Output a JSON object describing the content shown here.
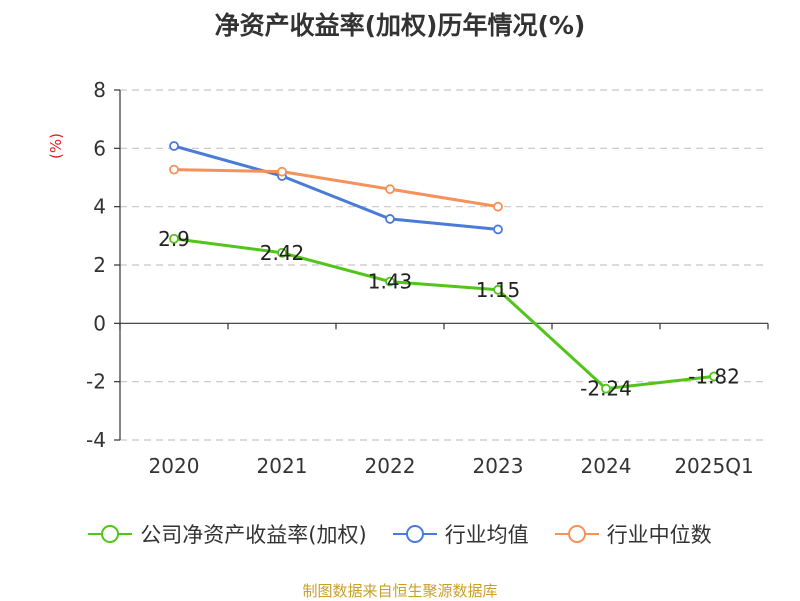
{
  "title": "净资产收益率(加权)历年情况(%)",
  "source": "制图数据来自恒生聚源数据库",
  "chart_data": {
    "type": "line",
    "title": "净资产收益率(加权)历年情况(%)",
    "ylabel": "(%)",
    "xlabel": "",
    "categories": [
      "2020",
      "2021",
      "2022",
      "2023",
      "2024",
      "2025Q1"
    ],
    "ylim": [
      -4,
      8
    ],
    "yticks": [
      "8",
      "6",
      "4",
      "2",
      "0",
      "-2",
      "-4"
    ],
    "grid": true,
    "legend_position": "bottom",
    "series": [
      {
        "name": "公司净资产收益率(加权)",
        "color": "#52c41a",
        "values": [
          2.9,
          2.42,
          1.43,
          1.15,
          -2.24,
          -1.82
        ],
        "labels": [
          "2.9",
          "2.42",
          "1.43",
          "1.15",
          "-2.24",
          "-1.82"
        ]
      },
      {
        "name": "行业均值",
        "color": "#4a7bd6",
        "values": [
          6.08,
          5.05,
          3.58,
          3.22,
          null,
          null
        ]
      },
      {
        "name": "行业中位数",
        "color": "#f5915a",
        "values": [
          5.27,
          5.2,
          4.6,
          4.0,
          null,
          null
        ]
      }
    ]
  }
}
